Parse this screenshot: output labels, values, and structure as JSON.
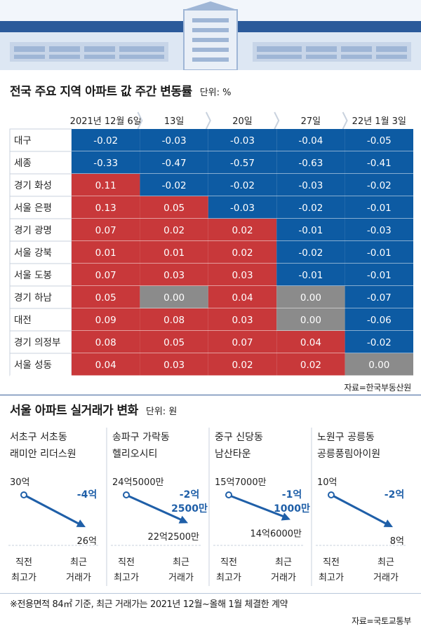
{
  "table_chart": {
    "title": "전국 주요 지역 아파트 값 주간 변동률",
    "unit": "단위: %",
    "source": "자료=한국부동산원",
    "colors": {
      "negative": "#0d5ba3",
      "positive": "#c8383a",
      "zero": "#8b8b8b",
      "row_label_bg": "#ffffff"
    }
  },
  "chart_data": [
    {
      "type": "heatmap",
      "columns": [
        "2021년 12월 6일",
        "13일",
        "20일",
        "27일",
        "22년 1월 3일"
      ],
      "rows": [
        {
          "region": "대구",
          "values": [
            "-0.02",
            "-0.03",
            "-0.03",
            "-0.04",
            "-0.05"
          ]
        },
        {
          "region": "세종",
          "values": [
            "-0.33",
            "-0.47",
            "-0.57",
            "-0.63",
            "-0.41"
          ]
        },
        {
          "region": "경기 화성",
          "values": [
            "0.11",
            "-0.02",
            "-0.02",
            "-0.03",
            "-0.02"
          ]
        },
        {
          "region": "서울 은평",
          "values": [
            "0.13",
            "0.05",
            "-0.03",
            "-0.02",
            "-0.01"
          ]
        },
        {
          "region": "경기 광명",
          "values": [
            "0.07",
            "0.02",
            "0.02",
            "-0.01",
            "-0.03"
          ]
        },
        {
          "region": "서울 강북",
          "values": [
            "0.01",
            "0.01",
            "0.02",
            "-0.02",
            "-0.01"
          ]
        },
        {
          "region": "서울 도봉",
          "values": [
            "0.07",
            "0.03",
            "0.03",
            "-0.01",
            "-0.01"
          ]
        },
        {
          "region": "경기 하남",
          "values": [
            "0.05",
            "0.00",
            "0.04",
            "0.00",
            "-0.07"
          ]
        },
        {
          "region": "대전",
          "values": [
            "0.09",
            "0.08",
            "0.03",
            "0.00",
            "-0.06"
          ]
        },
        {
          "region": "경기 의정부",
          "values": [
            "0.08",
            "0.05",
            "0.07",
            "0.04",
            "-0.02"
          ]
        },
        {
          "region": "서울 성동",
          "values": [
            "0.04",
            "0.03",
            "0.02",
            "0.02",
            "0.00"
          ]
        }
      ]
    },
    {
      "type": "line",
      "title": "서울 아파트 실거래가 변화",
      "unit": "단위: 원",
      "categories": [
        "직전 최고가",
        "최근 거래가"
      ],
      "panels": [
        {
          "district": "서초구 서초동",
          "complex": "래미안 리더스원",
          "high": 30,
          "recent": 26,
          "high_label": "30억",
          "recent_label": "26억",
          "drop_lines": [
            "-4억"
          ]
        },
        {
          "district": "송파구 가락동",
          "complex": "헬리오시티",
          "high": 24.5,
          "recent": 22.25,
          "high_label": "24억5000만",
          "recent_label": "22억2500만",
          "drop_lines": [
            "-2억",
            "2500만"
          ]
        },
        {
          "district": "중구 신당동",
          "complex": "남산타운",
          "high": 15.7,
          "recent": 14.6,
          "high_label": "15억7000만",
          "recent_label": "14억6000만",
          "drop_lines": [
            "-1억",
            "1000만"
          ]
        },
        {
          "district": "노원구 공릉동",
          "complex": "공릉풍림아이원",
          "high": 10,
          "recent": 8,
          "high_label": "10억",
          "recent_label": "8억",
          "drop_lines": [
            "-2억"
          ]
        }
      ]
    }
  ],
  "price_chart": {
    "axis_left": [
      "직전",
      "최고가"
    ],
    "axis_right": [
      "최근",
      "거래가"
    ],
    "footnote": "※전용면적 84㎡ 기준, 최근 거래가는 2021년 12월~올해 1월 체결한 계약",
    "source": "자료=국토교통부",
    "colors": {
      "arrow": "#1f5fa8",
      "drop_text": "#1f5fa8"
    }
  }
}
